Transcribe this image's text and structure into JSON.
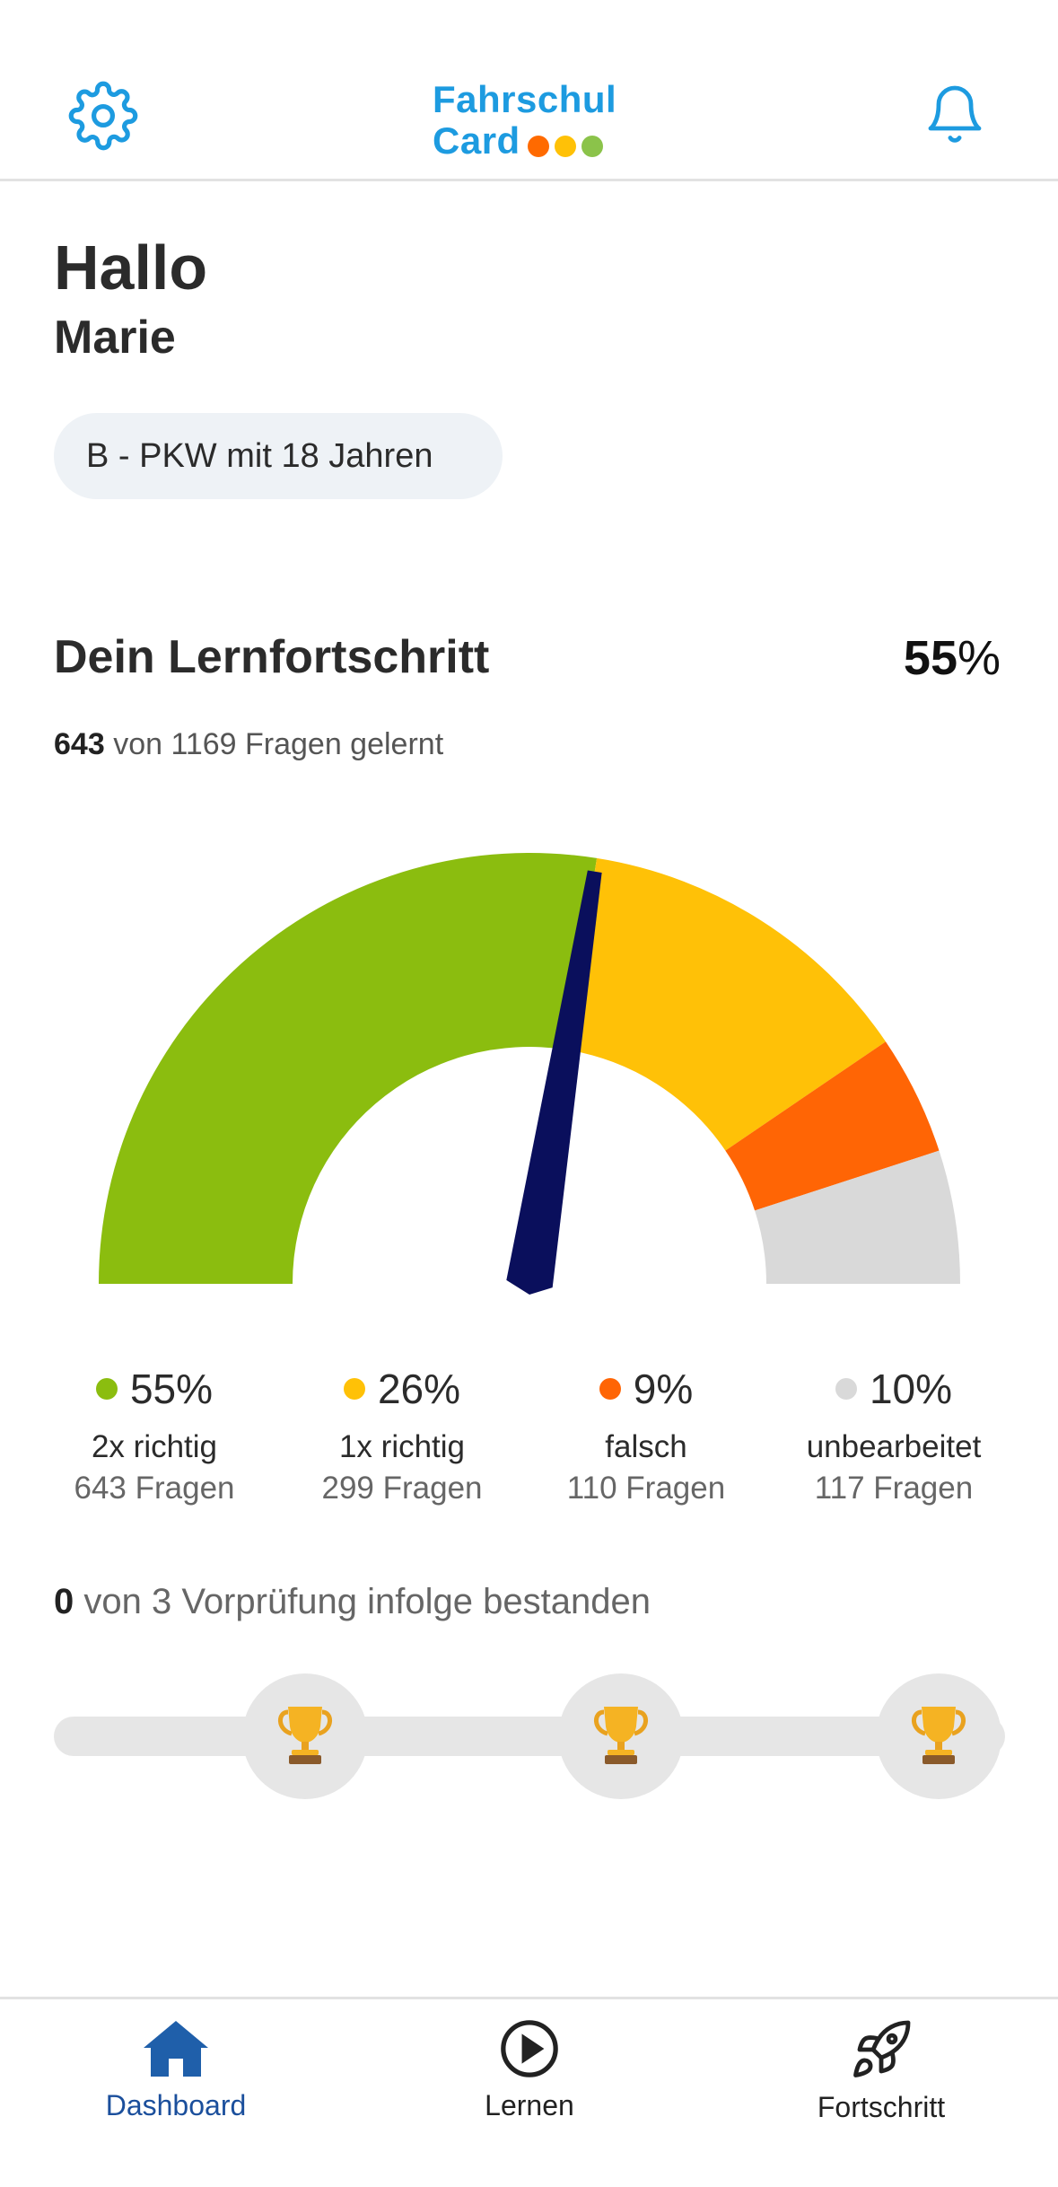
{
  "header": {
    "logo_line1": "Fahrschul",
    "logo_line2": "Card",
    "logo_dot_colors": [
      "#ff6a00",
      "#ffc107",
      "#8bc34a"
    ],
    "settings_icon": "gear-icon",
    "notifications_icon": "bell-icon"
  },
  "greeting": {
    "hello": "Hallo",
    "name": "Marie"
  },
  "license_class": "B - PKW mit 18 Jahren",
  "progress": {
    "title": "Dein Lernfortschritt",
    "percent_value": "55",
    "percent_unit": "%",
    "learned": "643",
    "summary_rest": "von 1169 Fragen gelernt"
  },
  "chart_data": {
    "type": "gauge",
    "needle_percent": 55,
    "segments": [
      {
        "label": "2x richtig",
        "percent": 55,
        "percent_text": "55%",
        "count_text": "643 Fragen",
        "color": "#8bbd0f"
      },
      {
        "label": "1x richtig",
        "percent": 26,
        "percent_text": "26%",
        "count_text": "299 Fragen",
        "color": "#ffc107"
      },
      {
        "label": "falsch",
        "percent": 9,
        "percent_text": "9%",
        "count_text": "110 Fragen",
        "color": "#ff6505"
      },
      {
        "label": "unbearbeitet",
        "percent": 10,
        "percent_text": "10%",
        "count_text": "117 Fragen",
        "color": "#d9d9d9"
      }
    ],
    "needle_color": "#0a0f5c"
  },
  "streak": {
    "passed": "0",
    "rest": "von 3 Vorprüfung infolge bestanden",
    "milestones": 3,
    "milestone_icon": "trophy-icon"
  },
  "tabs": [
    {
      "label": "Dashboard",
      "icon": "home-icon",
      "active": true
    },
    {
      "label": "Lernen",
      "icon": "play-circle-icon",
      "active": false
    },
    {
      "label": "Fortschritt",
      "icon": "rocket-icon",
      "active": false
    }
  ],
  "colors": {
    "brand": "#1d9be0",
    "active_tab": "#1b4f9c"
  }
}
